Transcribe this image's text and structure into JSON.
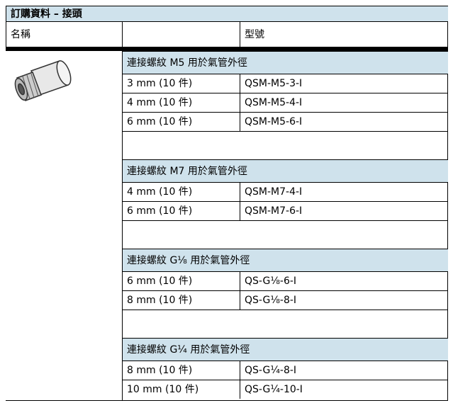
{
  "title": "訂購資料 – 接頭",
  "header": {
    "name": "名稱",
    "model": "型號"
  },
  "groups": [
    {
      "thread": "連接螺紋 M5 用於氣管外徑",
      "items": [
        {
          "size": "3 mm (10 件)",
          "code": "QSM-M5-3-I"
        },
        {
          "size": "4 mm (10 件)",
          "code": "QSM-M5-4-I"
        },
        {
          "size": "6 mm (10 件)",
          "code": "QSM-M5-6-I"
        }
      ]
    },
    {
      "thread": "連接螺紋 M7 用於氣管外徑",
      "items": [
        {
          "size": "4 mm (10 件)",
          "code": "QSM-M7-4-I"
        },
        {
          "size": "6 mm (10 件)",
          "code": "QSM-M7-6-I"
        }
      ]
    },
    {
      "thread": "連接螺紋 G⅛ 用於氣管外徑",
      "items": [
        {
          "size": "6 mm (10 件)",
          "code": "QS-G⅛-6-I"
        },
        {
          "size": "8 mm (10 件)",
          "code": "QS-G⅛-8-I"
        }
      ]
    },
    {
      "thread": "連接螺紋 G¼ 用於氣管外徑",
      "items": [
        {
          "size": "8 mm (10 件)",
          "code": "QS-G¼-8-I"
        },
        {
          "size": "10 mm (10 件)",
          "code": "QS-G¼-10-I"
        }
      ]
    }
  ]
}
